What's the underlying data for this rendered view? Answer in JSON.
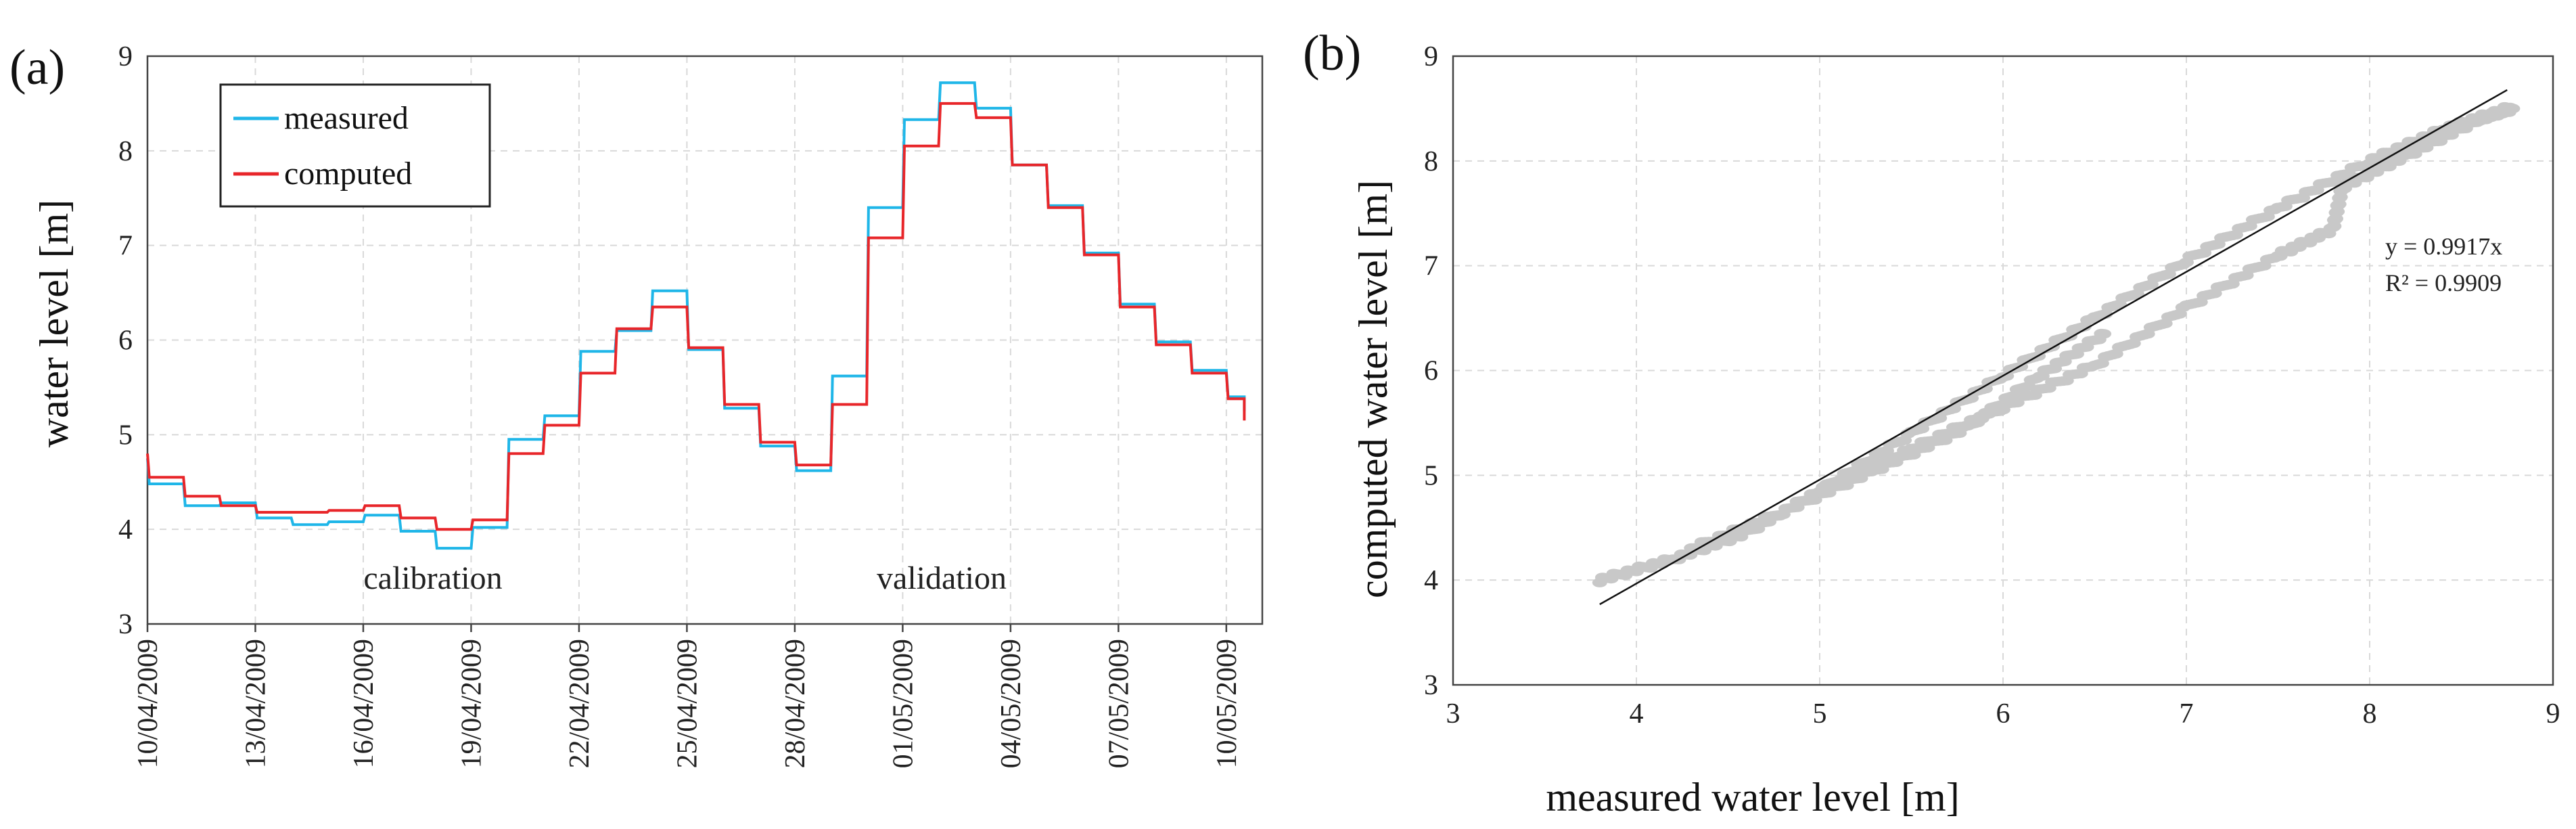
{
  "chart_data": [
    {
      "panel": "(a)",
      "type": "line",
      "xlabel": "",
      "ylabel": "water level [m]",
      "ylim": [
        3,
        9
      ],
      "yticks": [
        "3",
        "4",
        "5",
        "6",
        "7",
        "8",
        "9"
      ],
      "x_range_days": [
        0,
        31
      ],
      "xtick_labels": [
        "10/04/2009",
        "13/04/2009",
        "16/04/2009",
        "19/04/2009",
        "22/04/2009",
        "25/04/2009",
        "28/04/2009",
        "01/05/2009",
        "04/05/2009",
        "07/05/2009",
        "10/05/2009"
      ],
      "xtick_days": [
        0,
        3,
        6,
        9,
        12,
        15,
        18,
        21,
        24,
        27,
        30
      ],
      "legend": [
        "measured",
        "computed"
      ],
      "annotations": [
        "calibration",
        "validation"
      ],
      "series": [
        {
          "name": "measured",
          "color": "#1fb6e8",
          "points": [
            [
              0,
              4.75
            ],
            [
              0.05,
              4.48
            ],
            [
              1,
              4.48
            ],
            [
              1.05,
              4.25
            ],
            [
              2,
              4.25
            ],
            [
              2.05,
              4.28
            ],
            [
              3,
              4.28
            ],
            [
              3.05,
              4.12
            ],
            [
              4,
              4.12
            ],
            [
              4.05,
              4.05
            ],
            [
              5,
              4.05
            ],
            [
              5.05,
              4.08
            ],
            [
              6,
              4.08
            ],
            [
              6.05,
              4.15
            ],
            [
              7,
              4.15
            ],
            [
              7.05,
              3.98
            ],
            [
              8,
              3.98
            ],
            [
              8.05,
              3.8
            ],
            [
              9,
              3.8
            ],
            [
              9.05,
              4.02
            ],
            [
              10,
              4.02
            ],
            [
              10.05,
              4.95
            ],
            [
              11,
              4.95
            ],
            [
              11.05,
              5.2
            ],
            [
              12,
              5.2
            ],
            [
              12.05,
              5.88
            ],
            [
              13,
              5.88
            ],
            [
              13.05,
              6.1
            ],
            [
              14,
              6.1
            ],
            [
              14.05,
              6.52
            ],
            [
              15,
              6.52
            ],
            [
              15.05,
              5.9
            ],
            [
              16,
              5.9
            ],
            [
              16.05,
              5.28
            ],
            [
              17,
              5.28
            ],
            [
              17.05,
              4.88
            ],
            [
              18,
              4.88
            ],
            [
              18.05,
              4.62
            ],
            [
              19,
              4.62
            ],
            [
              19.05,
              5.62
            ],
            [
              20,
              5.62
            ],
            [
              20.05,
              7.4
            ],
            [
              21,
              7.4
            ],
            [
              21.05,
              8.33
            ],
            [
              22,
              8.33
            ],
            [
              22.05,
              8.72
            ],
            [
              23,
              8.72
            ],
            [
              23.05,
              8.45
            ],
            [
              24,
              8.45
            ],
            [
              24.05,
              7.85
            ],
            [
              25,
              7.85
            ],
            [
              25.05,
              7.42
            ],
            [
              26,
              7.42
            ],
            [
              26.05,
              6.92
            ],
            [
              27,
              6.92
            ],
            [
              27.05,
              6.38
            ],
            [
              28,
              6.38
            ],
            [
              28.05,
              5.98
            ],
            [
              29,
              5.98
            ],
            [
              29.05,
              5.68
            ],
            [
              30,
              5.68
            ],
            [
              30.05,
              5.4
            ],
            [
              30.5,
              5.4
            ],
            [
              30.5,
              5.25
            ]
          ]
        },
        {
          "name": "computed",
          "color": "#e8262a",
          "points": [
            [
              0,
              4.8
            ],
            [
              0.05,
              4.55
            ],
            [
              1,
              4.55
            ],
            [
              1.05,
              4.35
            ],
            [
              2,
              4.35
            ],
            [
              2.05,
              4.25
            ],
            [
              3,
              4.25
            ],
            [
              3.05,
              4.18
            ],
            [
              4,
              4.18
            ],
            [
              4.05,
              4.18
            ],
            [
              5,
              4.18
            ],
            [
              5.05,
              4.2
            ],
            [
              6,
              4.2
            ],
            [
              6.05,
              4.25
            ],
            [
              7,
              4.25
            ],
            [
              7.05,
              4.12
            ],
            [
              8,
              4.12
            ],
            [
              8.05,
              4.0
            ],
            [
              9,
              4.0
            ],
            [
              9.05,
              4.1
            ],
            [
              10,
              4.1
            ],
            [
              10.05,
              4.8
            ],
            [
              11,
              4.8
            ],
            [
              11.05,
              5.1
            ],
            [
              12,
              5.1
            ],
            [
              12.05,
              5.65
            ],
            [
              13,
              5.65
            ],
            [
              13.05,
              6.12
            ],
            [
              14,
              6.12
            ],
            [
              14.05,
              6.35
            ],
            [
              15,
              6.35
            ],
            [
              15.05,
              5.92
            ],
            [
              16,
              5.92
            ],
            [
              16.05,
              5.32
            ],
            [
              17,
              5.32
            ],
            [
              17.05,
              4.92
            ],
            [
              18,
              4.92
            ],
            [
              18.05,
              4.68
            ],
            [
              19,
              4.68
            ],
            [
              19.05,
              5.32
            ],
            [
              20,
              5.32
            ],
            [
              20.05,
              7.08
            ],
            [
              21,
              7.08
            ],
            [
              21.05,
              8.05
            ],
            [
              22,
              8.05
            ],
            [
              22.05,
              8.5
            ],
            [
              23,
              8.5
            ],
            [
              23.05,
              8.35
            ],
            [
              24,
              8.35
            ],
            [
              24.05,
              7.85
            ],
            [
              25,
              7.85
            ],
            [
              25.05,
              7.4
            ],
            [
              26,
              7.4
            ],
            [
              26.05,
              6.9
            ],
            [
              27,
              6.9
            ],
            [
              27.05,
              6.35
            ],
            [
              28,
              6.35
            ],
            [
              28.05,
              5.95
            ],
            [
              29,
              5.95
            ],
            [
              29.05,
              5.65
            ],
            [
              30,
              5.65
            ],
            [
              30.05,
              5.38
            ],
            [
              30.5,
              5.38
            ],
            [
              30.5,
              5.15
            ]
          ]
        }
      ]
    },
    {
      "panel": "(b)",
      "type": "scatter",
      "xlabel": "measured water level [m]",
      "ylabel": "computed water level [m]",
      "xlim": [
        3,
        9
      ],
      "ylim": [
        3,
        9
      ],
      "xticks": [
        "3",
        "4",
        "5",
        "6",
        "7",
        "8",
        "9"
      ],
      "yticks": [
        "3",
        "4",
        "5",
        "6",
        "7",
        "8",
        "9"
      ],
      "point_color": "#c8c8c8",
      "trendline": {
        "slope": 0.9917,
        "x_range": [
          3.8,
          8.75
        ],
        "equation": "y = 0.9917x",
        "r2": "R² = 0.9909"
      },
      "branches": [
        [
          [
            3.8,
            4.0
          ],
          [
            4.2,
            4.2
          ],
          [
            4.6,
            4.45
          ],
          [
            5.0,
            4.85
          ],
          [
            5.5,
            5.4
          ],
          [
            6.0,
            5.95
          ],
          [
            6.5,
            6.5
          ],
          [
            7.0,
            7.05
          ],
          [
            7.5,
            7.55
          ],
          [
            8.0,
            8.0
          ],
          [
            8.4,
            8.3
          ],
          [
            8.75,
            8.5
          ]
        ],
        [
          [
            4.3,
            4.3
          ],
          [
            4.8,
            4.65
          ],
          [
            5.3,
            5.05
          ],
          [
            5.8,
            5.45
          ],
          [
            6.2,
            5.95
          ],
          [
            6.55,
            6.35
          ]
        ],
        [
          [
            5.0,
            4.85
          ],
          [
            5.5,
            5.25
          ],
          [
            6.0,
            5.65
          ],
          [
            6.5,
            6.05
          ],
          [
            7.0,
            6.6
          ],
          [
            7.5,
            7.1
          ],
          [
            7.8,
            7.35
          ],
          [
            7.85,
            7.75
          ],
          [
            8.2,
            8.05
          ],
          [
            8.6,
            8.4
          ],
          [
            8.78,
            8.5
          ]
        ]
      ]
    }
  ]
}
